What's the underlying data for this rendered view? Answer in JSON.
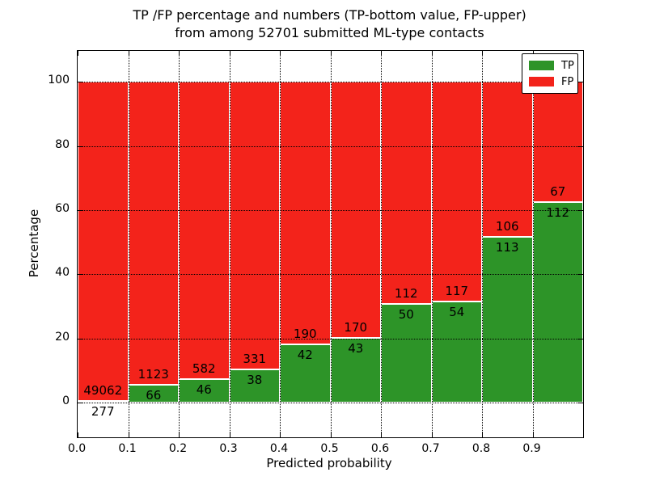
{
  "chart_data": {
    "type": "bar",
    "stacked": true,
    "normalized": "percent",
    "title": "TP /FP percentage and numbers (TP-bottom value, FP-upper)",
    "subtitle": "from among 52701 submitted ML-type contacts",
    "total_submitted_contacts": 52701,
    "xlabel": "Predicted probability",
    "ylabel": "Percentage",
    "categories": [
      "0.0",
      "0.1",
      "0.2",
      "0.3",
      "0.4",
      "0.5",
      "0.6",
      "0.7",
      "0.8",
      "0.9"
    ],
    "series": [
      {
        "name": "TP",
        "color": "#2d9428",
        "values": [
          277,
          66,
          46,
          38,
          42,
          43,
          50,
          54,
          113,
          112
        ]
      },
      {
        "name": "FP",
        "color": "#f3231b",
        "values": [
          49062,
          1123,
          582,
          331,
          190,
          170,
          112,
          117,
          106,
          67
        ]
      }
    ],
    "yticks": [
      0,
      20,
      40,
      60,
      80,
      100
    ],
    "ylim": [
      -10.8,
      109.6
    ],
    "xlim": [
      0.0,
      1.0
    ],
    "grid": {
      "style": "dotted",
      "color": "#000000"
    },
    "legend": {
      "position": "upper right"
    },
    "axis_color": "#000000",
    "bar_edge_color": "#ffffff",
    "text_color": "#000000"
  }
}
